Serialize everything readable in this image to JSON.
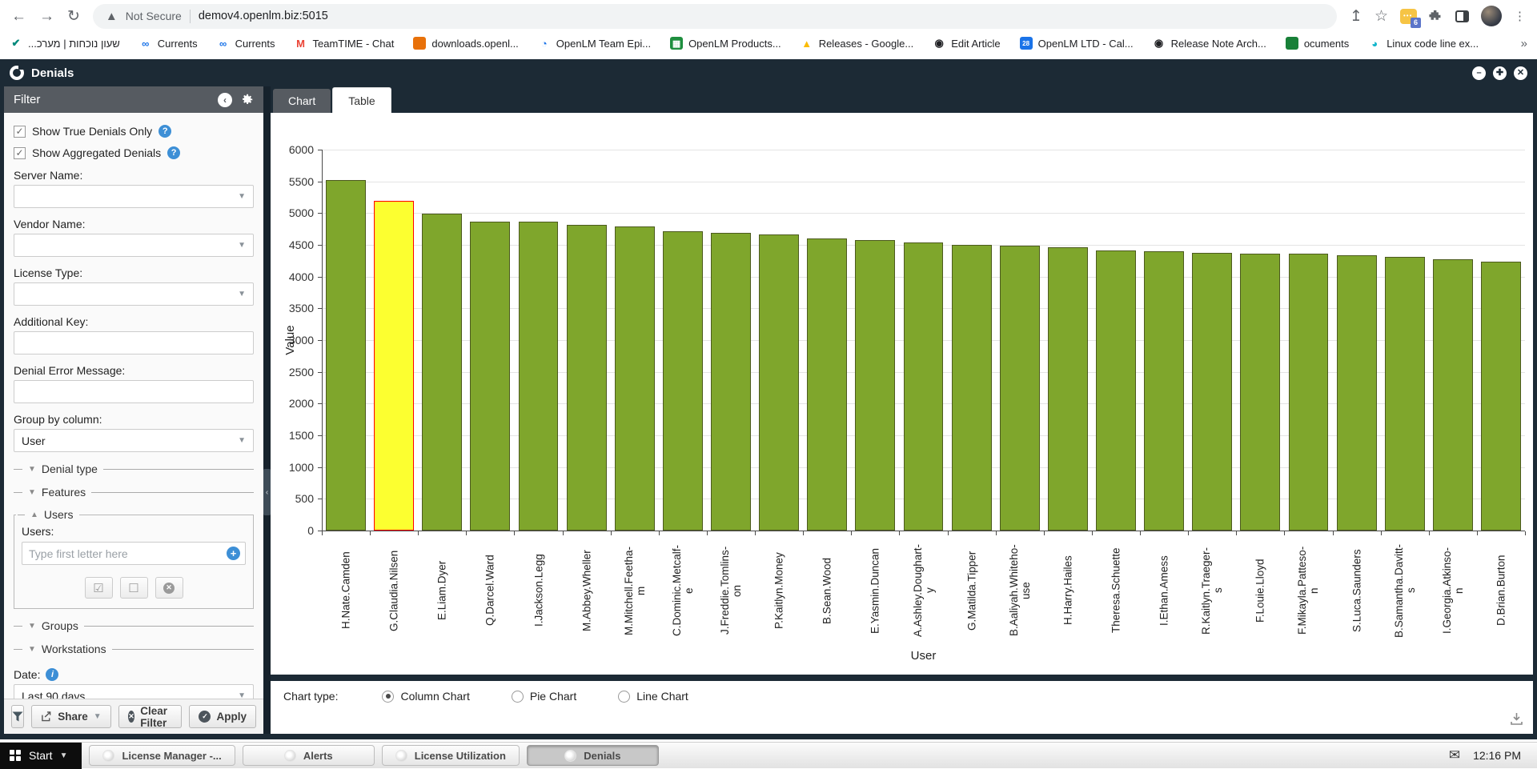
{
  "browser": {
    "security_label": "Not Secure",
    "url": "demov4.openlm.biz:5015",
    "extension_badge": "6",
    "bookmarks": [
      {
        "label": "...שעון נוכחות | מערכ",
        "icon": "check-shield-icon",
        "shape": "check",
        "color": "#00897b"
      },
      {
        "label": "Currents",
        "icon": "currents-icon",
        "shape": "infinity",
        "color": "#1a73e8"
      },
      {
        "label": "Currents",
        "icon": "currents-icon",
        "shape": "infinity",
        "color": "#1a73e8"
      },
      {
        "label": "TeamTIME - Chat",
        "icon": "gmail-icon",
        "shape": "m",
        "color": "#ea4335"
      },
      {
        "label": "downloads.openl...",
        "icon": "cube-icon",
        "shape": "cube",
        "color": "#e8710a"
      },
      {
        "label": "OpenLM Team Epi...",
        "icon": "ring-icon",
        "shape": "ring",
        "color": "#1a73e8"
      },
      {
        "label": "OpenLM Products...",
        "icon": "sheet-icon",
        "shape": "grid",
        "color": "#1e8e3e"
      },
      {
        "label": "Releases - Google...",
        "icon": "drive-icon",
        "shape": "triangle",
        "color": "#fbbc04"
      },
      {
        "label": "Edit Article",
        "icon": "disc-icon",
        "shape": "dot",
        "color": "#202124"
      },
      {
        "label": "OpenLM LTD - Cal...",
        "icon": "calendar-28-icon",
        "shape": "cal28",
        "color": "#1a73e8"
      },
      {
        "label": "Release Note Arch...",
        "icon": "disc-icon",
        "shape": "dot",
        "color": "#202124"
      },
      {
        "label": "ocuments",
        "icon": "docs-icon",
        "shape": "doc",
        "color": "#188038"
      },
      {
        "label": "Linux code line ex...",
        "icon": "swirl-icon",
        "shape": "swirl",
        "color": "#12b5cb"
      }
    ]
  },
  "window": {
    "title": "Denials"
  },
  "filter_panel": {
    "title": "Filter",
    "show_true_denials": "Show True Denials Only",
    "show_aggregated": "Show Aggregated Denials",
    "server_name_label": "Server Name:",
    "vendor_name_label": "Vendor Name:",
    "license_type_label": "License Type:",
    "additional_key_label": "Additional Key:",
    "denial_error_label": "Denial Error Message:",
    "group_by_label": "Group by column:",
    "group_by_value": "User",
    "section_denial_type": "Denial type",
    "section_features": "Features",
    "section_users": "Users",
    "users_label": "Users:",
    "users_placeholder": "Type first letter here",
    "section_groups": "Groups",
    "section_workstations": "Workstations",
    "date_label": "Date:",
    "date_value": "Last 90 days",
    "share_label": "Share",
    "clear_label": "Clear Filter",
    "apply_label": "Apply"
  },
  "main": {
    "tab_chart": "Chart",
    "tab_table": "Table",
    "chart_type_label": "Chart type:",
    "chart_types": [
      "Column Chart",
      "Pie Chart",
      "Line Chart"
    ],
    "selected_chart_type": "Column Chart"
  },
  "chart_data": {
    "type": "bar",
    "title": "",
    "xlabel": "User",
    "ylabel": "Value",
    "ylim": [
      0,
      6000
    ],
    "ytick_step": 500,
    "grid": true,
    "categories": [
      "H.Nate.Camden",
      "G.Claudia.Nilsen",
      "E.Liam.Dyer",
      "Q.Darcel.Ward",
      "I.Jackson.Legg",
      "M.Abbey.Wheller",
      "M.Mitchell.Feetham",
      "C.Dominic.Metcalfe",
      "J.Freddie.Tomlinson",
      "P.Kaitlyn.Money",
      "B.Sean.Wood",
      "E.Yasmin.Duncan",
      "A.Ashley.Dougharty",
      "G.Matilda.Tipper",
      "B.Aaliyah.Whitehouse",
      "H.Harry.Hailes",
      "Theresa.Schuette",
      "I.Ethan.Amess",
      "R.Kaitlyn.Traegers",
      "F.Louie.Lloyd",
      "F.Mikayla.Patteson",
      "S.Luca.Saunders",
      "B.Samantha.Davitts",
      "I.Georgia.Atkinson",
      "D.Brian.Burton"
    ],
    "values": [
      5515,
      5190,
      4990,
      4865,
      4860,
      4815,
      4790,
      4720,
      4685,
      4660,
      4600,
      4570,
      4535,
      4505,
      4490,
      4465,
      4415,
      4400,
      4375,
      4365,
      4360,
      4335,
      4315,
      4275,
      4230
    ],
    "bar_color": "#7fa62c",
    "bar_border": "#4c5a1e",
    "highlight_index": 1,
    "highlight_color": "#fcff30",
    "highlight_border": "#ff0000"
  },
  "taskbar": {
    "start_label": "Start",
    "tasks": [
      {
        "label": "License Manager -...",
        "active": false
      },
      {
        "label": "Alerts",
        "active": false
      },
      {
        "label": "License Utilization",
        "active": false
      },
      {
        "label": "Denials",
        "active": true
      }
    ],
    "clock": "12:16 PM"
  }
}
